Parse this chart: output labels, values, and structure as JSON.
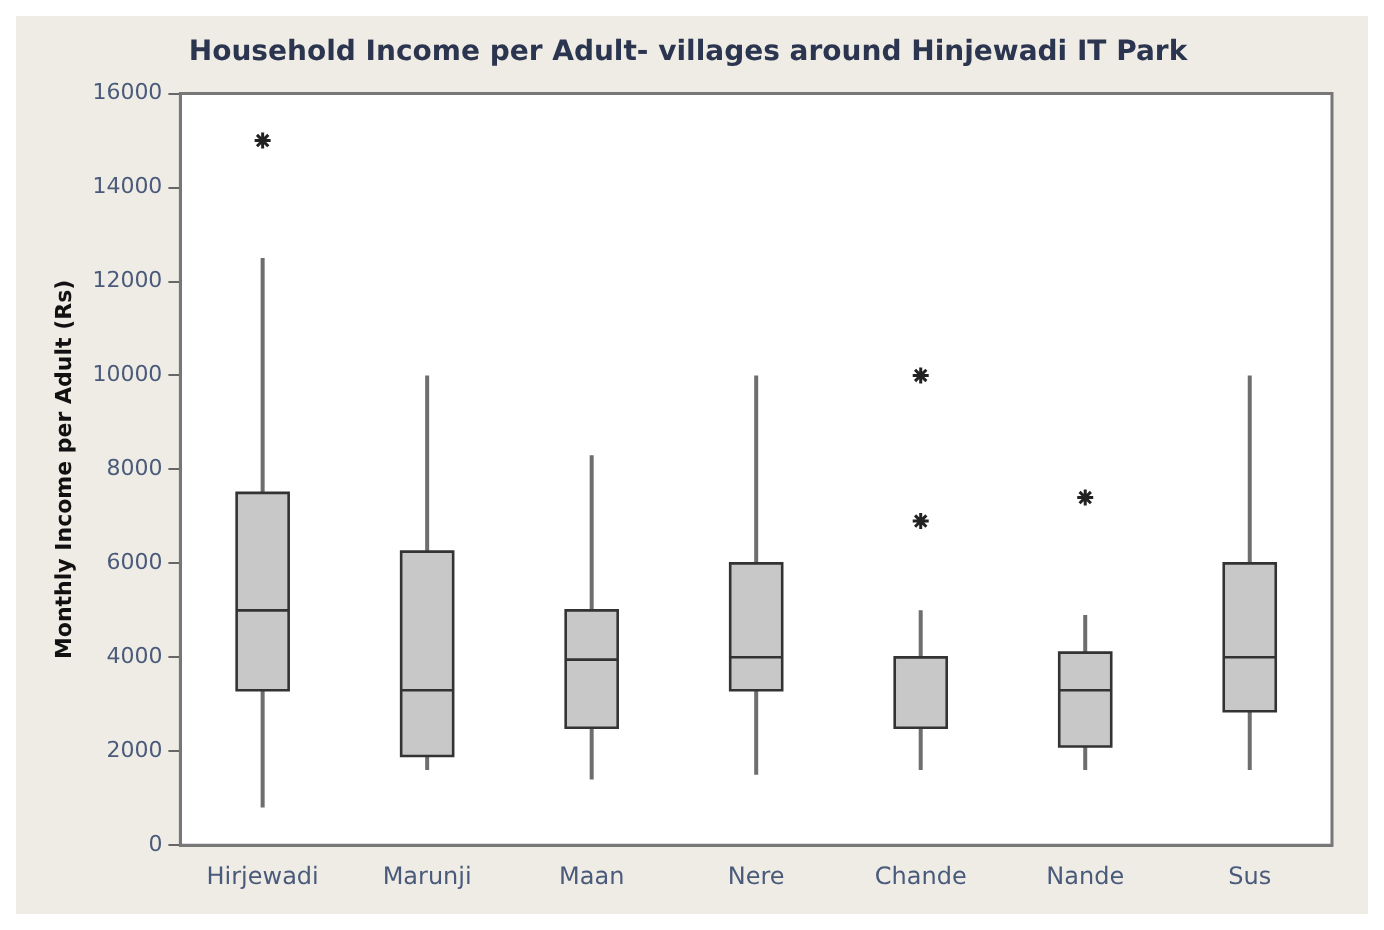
{
  "chart_data": {
    "type": "box",
    "title": "Household Income per Adult- villages around Hinjewadi IT Park",
    "ylabel": "Monthly Income per Adult (Rs)",
    "categories": [
      "Hirjewadi",
      "Marunji",
      "Maan",
      "Nere",
      "Chande",
      "Nande",
      "Sus"
    ],
    "boxes": [
      {
        "low": 800,
        "q1": 3300,
        "median": 5000,
        "q3": 7500,
        "high": 12500,
        "outliers": [
          15000
        ]
      },
      {
        "low": 1600,
        "q1": 1900,
        "median": 3300,
        "q3": 6250,
        "high": 10000
      },
      {
        "low": 1400,
        "q1": 2500,
        "median": 3950,
        "q3": 5000,
        "high": 8300
      },
      {
        "low": 1500,
        "q1": 3300,
        "median": 4000,
        "q3": 6000,
        "high": 10000
      },
      {
        "low": 1600,
        "q1": 2500,
        "median": 4000,
        "q3": 4000,
        "high": 5000,
        "outliers": [
          6900,
          10000
        ]
      },
      {
        "low": 1600,
        "q1": 2100,
        "median": 3300,
        "q3": 4100,
        "high": 4900,
        "outliers": [
          7400
        ]
      },
      {
        "low": 1600,
        "q1": 2850,
        "median": 4000,
        "q3": 6000,
        "high": 10000
      }
    ],
    "color": "#c8c8c8",
    "ylim": [
      0,
      16000
    ],
    "yticks": [
      0,
      2000,
      4000,
      6000,
      8000,
      10000,
      12000,
      14000,
      16000
    ],
    "grid": false,
    "legend": false,
    "marker": "star"
  }
}
